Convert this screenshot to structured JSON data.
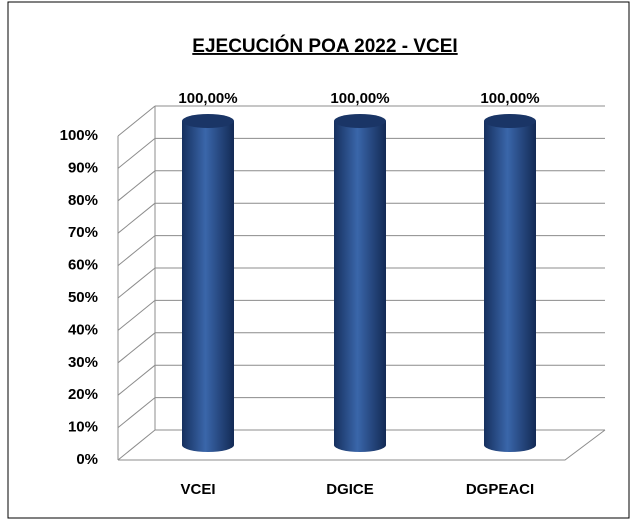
{
  "chart_data": {
    "type": "bar3d",
    "title": "EJECUCIÓN POA 2022 - VCEI",
    "categories": [
      "VCEI",
      "DGICE",
      "DGPEACI"
    ],
    "values": [
      100,
      100,
      100
    ],
    "value_labels": [
      "100,00%",
      "100,00%",
      "100,00%"
    ],
    "color": "#2a4f8f",
    "ylim": [
      0,
      100
    ],
    "yticks": [
      {
        "value": 0,
        "label": "0%"
      },
      {
        "value": 10,
        "label": "10%"
      },
      {
        "value": 20,
        "label": "20%"
      },
      {
        "value": 30,
        "label": "30%"
      },
      {
        "value": 40,
        "label": "40%"
      },
      {
        "value": 50,
        "label": "50%"
      },
      {
        "value": 60,
        "label": "60%"
      },
      {
        "value": 70,
        "label": "70%"
      },
      {
        "value": 80,
        "label": "80%"
      },
      {
        "value": 90,
        "label": "90%"
      },
      {
        "value": 100,
        "label": "100%"
      }
    ],
    "grid": true
  }
}
